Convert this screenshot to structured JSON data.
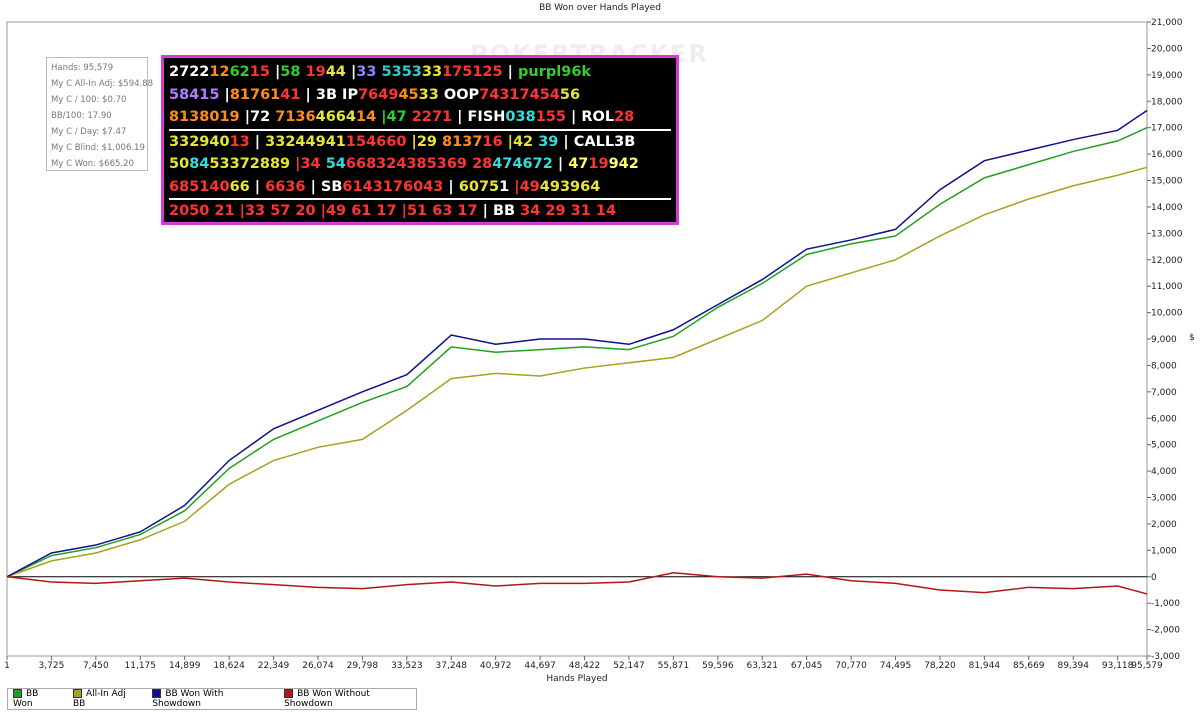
{
  "chart_data": {
    "type": "line",
    "title": "BB Won over Hands Played",
    "x_label": "Hands Played",
    "y_label": "$",
    "watermark": "POKERTRACKER",
    "x": [
      1,
      3725,
      7450,
      11175,
      14899,
      18624,
      22349,
      26074,
      29798,
      33523,
      37248,
      40972,
      44697,
      48422,
      52147,
      55871,
      59596,
      63321,
      67045,
      70770,
      74495,
      78220,
      81944,
      85669,
      89394,
      93118,
      95579
    ],
    "series": [
      {
        "name": "BB Won",
        "color": "#22a022",
        "values": [
          0,
          800,
          1100,
          1600,
          2500,
          4100,
          5200,
          5900,
          6600,
          7200,
          8700,
          8500,
          8600,
          8700,
          8600,
          9100,
          10200,
          11100,
          12200,
          12600,
          12900,
          14100,
          15100,
          15600,
          16100,
          16500,
          17000
        ]
      },
      {
        "name": "All-In Adj BB",
        "color": "#a8a020",
        "values": [
          0,
          600,
          900,
          1400,
          2100,
          3500,
          4400,
          4900,
          5200,
          6300,
          7500,
          7700,
          7600,
          7900,
          8100,
          8300,
          9000,
          9700,
          11000,
          11500,
          12000,
          12900,
          13700,
          14300,
          14800,
          15200,
          15500
        ]
      },
      {
        "name": "BB Won With Showdown",
        "color": "#101090",
        "values": [
          0,
          900,
          1200,
          1700,
          2700,
          4400,
          5600,
          6300,
          7000,
          7650,
          9150,
          8800,
          9000,
          9000,
          8800,
          9350,
          10300,
          11250,
          12400,
          12750,
          13150,
          14650,
          15750,
          16150,
          16550,
          16900,
          17650
        ]
      },
      {
        "name": "BB Won Without Showdown",
        "color": "#b01818",
        "values": [
          0,
          -200,
          -250,
          -150,
          -50,
          -200,
          -300,
          -400,
          -450,
          -300,
          -200,
          -350,
          -250,
          -250,
          -200,
          150,
          0,
          -50,
          100,
          -150,
          -250,
          -500,
          -600,
          -400,
          -450,
          -350,
          -650
        ]
      }
    ],
    "xlim": [
      1,
      95579
    ],
    "xticks": [
      1,
      {
        "value": 3725,
        "label": "3,725"
      },
      {
        "value": 7450,
        "label": "7,450"
      },
      {
        "value": 11175,
        "label": "11,175"
      },
      {
        "value": 14899,
        "label": "14,899"
      },
      {
        "value": 18624,
        "label": "18,624"
      },
      {
        "value": 22349,
        "label": "22,349"
      },
      {
        "value": 26074,
        "label": "26,074"
      },
      {
        "value": 29798,
        "label": "29,798"
      },
      {
        "value": 33523,
        "label": "33,523"
      },
      {
        "value": 37248,
        "label": "37,248"
      },
      {
        "value": 40972,
        "label": "40,972"
      },
      {
        "value": 44697,
        "label": "44,697"
      },
      {
        "value": 48422,
        "label": "48,422"
      },
      {
        "value": 52147,
        "label": "52,147"
      },
      {
        "value": 55871,
        "label": "55,871"
      },
      {
        "value": 59596,
        "label": "59,596"
      },
      {
        "value": 63321,
        "label": "63,321"
      },
      {
        "value": 67045,
        "label": "67,045"
      },
      {
        "value": 70770,
        "label": "70,770"
      },
      {
        "value": 74495,
        "label": "74,495"
      },
      {
        "value": 78220,
        "label": "78,220"
      },
      {
        "value": 81944,
        "label": "81,944"
      },
      {
        "value": 85669,
        "label": "85,669"
      },
      {
        "value": 89394,
        "label": "89,394"
      },
      {
        "value": 93118,
        "label": "93,118"
      },
      {
        "value": 95579,
        "label": "95,579"
      }
    ],
    "ylim": [
      -3000,
      21000
    ],
    "yticks": [
      {
        "value": -3000,
        "label": "-3,000"
      },
      {
        "value": -2000,
        "label": "-2,000"
      },
      {
        "value": -1000,
        "label": "-1,000"
      },
      0,
      {
        "value": 1000,
        "label": "1,000"
      },
      {
        "value": 2000,
        "label": "2,000"
      },
      {
        "value": 3000,
        "label": "3,000"
      },
      {
        "value": 4000,
        "label": "4,000"
      },
      {
        "value": 5000,
        "label": "5,000"
      },
      {
        "value": 6000,
        "label": "6,000"
      },
      {
        "value": 7000,
        "label": "7,000"
      },
      {
        "value": 8000,
        "label": "8,000"
      },
      {
        "value": 9000,
        "label": "9,000"
      },
      {
        "value": 10000,
        "label": "10,000"
      },
      {
        "value": 11000,
        "label": "11,000"
      },
      {
        "value": 12000,
        "label": "12,000"
      },
      {
        "value": 13000,
        "label": "13,000"
      },
      {
        "value": 14000,
        "label": "14,000"
      },
      {
        "value": 15000,
        "label": "15,000"
      },
      {
        "value": 16000,
        "label": "16,000"
      },
      {
        "value": 17000,
        "label": "17,000"
      },
      {
        "value": 18000,
        "label": "18,000"
      },
      {
        "value": 19000,
        "label": "19,000"
      },
      {
        "value": 20000,
        "label": "20,000"
      },
      {
        "value": 21000,
        "label": "21,000"
      }
    ],
    "legend": "bottom-left"
  },
  "stats_box": [
    "Hands: 95,579",
    "My C All-In Adj: $594.88",
    "My C / 100: $0.70",
    "BB/100: 17.90",
    "My C / Day: $7.47",
    "My C Blind: $1,006.19",
    "My C Won: $665.20"
  ],
  "hud": [
    [
      {
        "text": "27",
        "color": "#ffffff"
      },
      {
        "text": "22",
        "color": "#ffffff"
      },
      {
        "text": "12",
        "color": "#ff8c1a"
      },
      {
        "text": "62",
        "color": "#33cc33"
      },
      {
        "text": "15",
        "color": "#ff3333"
      },
      {
        "text": " |",
        "color": "#ffffff"
      },
      {
        "text": "58",
        "color": "#33cc33"
      },
      {
        "text": " 19",
        "color": "#ff3333"
      },
      {
        "text": "44",
        "color": "#e6e633"
      },
      {
        "text": " |",
        "color": "#ffffff"
      },
      {
        "text": "33",
        "color": "#8888ff"
      },
      {
        "text": " 53",
        "color": "#33cccc"
      },
      {
        "text": "53",
        "color": "#33cccc"
      },
      {
        "text": "33",
        "color": "#e6e633"
      },
      {
        "text": "17",
        "color": "#ff3333"
      },
      {
        "text": "51",
        "color": "#ff3333"
      },
      {
        "text": "25",
        "color": "#ff3333"
      },
      {
        "text": " | ",
        "color": "#ffffff"
      },
      {
        "text": "purpl96k",
        "color": "#33cc33"
      }
    ],
    [
      {
        "text": "58415",
        "color": "#b07cff"
      },
      {
        "text": " |",
        "color": "#ffffff"
      },
      {
        "text": "8",
        "color": "#ff8c1a"
      },
      {
        "text": "17",
        "color": "#ff8c1a"
      },
      {
        "text": "61",
        "color": "#ff8c1a"
      },
      {
        "text": "41",
        "color": "#ff3333"
      },
      {
        "text": " | 3B IP",
        "color": "#ffffff"
      },
      {
        "text": "76",
        "color": "#ff3333"
      },
      {
        "text": "49",
        "color": "#ff3333"
      },
      {
        "text": "45",
        "color": "#ff8c1a"
      },
      {
        "text": "33",
        "color": "#e6e633"
      },
      {
        "text": " OOP",
        "color": "#ffffff"
      },
      {
        "text": "74",
        "color": "#ff3333"
      },
      {
        "text": "31",
        "color": "#ff3333"
      },
      {
        "text": "74",
        "color": "#ff3333"
      },
      {
        "text": "54",
        "color": "#ff3333"
      },
      {
        "text": "56",
        "color": "#e6e633"
      }
    ],
    [
      {
        "text": "8",
        "color": "#ff8c1a"
      },
      {
        "text": "13",
        "color": "#ff8c1a"
      },
      {
        "text": "80",
        "color": "#ff8c1a"
      },
      {
        "text": "19",
        "color": "#ff8c1a"
      },
      {
        "text": " |72",
        "color": "#ffffff"
      },
      {
        "text": " 71",
        "color": "#ff8c1a"
      },
      {
        "text": "36",
        "color": "#ff8c1a"
      },
      {
        "text": "46",
        "color": "#e6e633"
      },
      {
        "text": "64",
        "color": "#e6e633"
      },
      {
        "text": "14",
        "color": "#ff8c1a"
      },
      {
        "text": " |47",
        "color": "#33cc33"
      },
      {
        "text": " 22",
        "color": "#ff3333"
      },
      {
        "text": "71",
        "color": "#ff3333"
      },
      {
        "text": " | FISH",
        "color": "#ffffff"
      },
      {
        "text": "0",
        "color": "#33dddd"
      },
      {
        "text": "38",
        "color": "#33dddd"
      },
      {
        "text": "155",
        "color": "#ff3333"
      },
      {
        "text": " | ROL",
        "color": "#ffffff"
      },
      {
        "text": "28",
        "color": "#ff3333"
      }
    ],
    [
      {
        "text": "33",
        "color": "#e6e633"
      },
      {
        "text": "29",
        "color": "#e6e633"
      },
      {
        "text": "40",
        "color": "#e6e633"
      },
      {
        "text": "13",
        "color": "#ff3333"
      },
      {
        "text": " | ",
        "color": "#ffffff"
      },
      {
        "text": "33",
        "color": "#e6e633"
      },
      {
        "text": "24",
        "color": "#e6e633"
      },
      {
        "text": "49",
        "color": "#e6e633"
      },
      {
        "text": "41",
        "color": "#e6e633"
      },
      {
        "text": "15",
        "color": "#ff3333"
      },
      {
        "text": "46",
        "color": "#ff3333"
      },
      {
        "text": "60",
        "color": "#ff3333"
      },
      {
        "text": " |29",
        "color": "#e6e633"
      },
      {
        "text": " 81",
        "color": "#ff8c1a"
      },
      {
        "text": "37",
        "color": "#ff8c1a"
      },
      {
        "text": "16",
        "color": "#ff3333"
      },
      {
        "text": " |42",
        "color": "#e6e633"
      },
      {
        "text": " 39",
        "color": "#33dddd"
      },
      {
        "text": " | CALL3B",
        "color": "#ffffff"
      }
    ],
    [
      {
        "text": "50",
        "color": "#e6e633"
      },
      {
        "text": "84",
        "color": "#33dddd"
      },
      {
        "text": "53",
        "color": "#e6e633"
      },
      {
        "text": "37",
        "color": "#e6e633"
      },
      {
        "text": "28",
        "color": "#e6e633"
      },
      {
        "text": "89",
        "color": "#e6e633"
      },
      {
        "text": " |34",
        "color": "#ff3333"
      },
      {
        "text": " 54",
        "color": "#33dddd"
      },
      {
        "text": "66",
        "color": "#ff3333"
      },
      {
        "text": "83",
        "color": "#ff3333"
      },
      {
        "text": "24",
        "color": "#ff3333"
      },
      {
        "text": "38",
        "color": "#ff3333"
      },
      {
        "text": "53",
        "color": "#ff3333"
      },
      {
        "text": "69",
        "color": "#ff3333"
      },
      {
        "text": " 28",
        "color": "#ff3333"
      },
      {
        "text": "47",
        "color": "#33dddd"
      },
      {
        "text": "46",
        "color": "#33dddd"
      },
      {
        "text": "72",
        "color": "#33dddd"
      },
      {
        "text": " | ",
        "color": "#ffffff"
      },
      {
        "text": "47",
        "color": "#ffff66"
      },
      {
        "text": "19",
        "color": "#ff3333"
      },
      {
        "text": "94",
        "color": "#ffff66"
      },
      {
        "text": "2",
        "color": "#ffff66"
      }
    ],
    [
      {
        "text": "68",
        "color": "#ff3333"
      },
      {
        "text": "51",
        "color": "#ff3333"
      },
      {
        "text": "40",
        "color": "#ff3333"
      },
      {
        "text": "66",
        "color": "#e6e633"
      },
      {
        "text": " | ",
        "color": "#ffffff"
      },
      {
        "text": "66",
        "color": "#ff3333"
      },
      {
        "text": "36",
        "color": "#ff3333"
      },
      {
        "text": " | SB",
        "color": "#ffffff"
      },
      {
        "text": "61",
        "color": "#ff3333"
      },
      {
        "text": "43",
        "color": "#ff3333"
      },
      {
        "text": "17",
        "color": "#ff3333"
      },
      {
        "text": "60",
        "color": "#ff3333"
      },
      {
        "text": "43",
        "color": "#ff3333"
      },
      {
        "text": " | ",
        "color": "#ffffff"
      },
      {
        "text": "60",
        "color": "#e6e633"
      },
      {
        "text": "75",
        "color": "#e6e633"
      },
      {
        "text": "1",
        "color": "#ffffff"
      },
      {
        "text": " |49",
        "color": "#ff3333"
      },
      {
        "text": "49",
        "color": "#e6e633"
      },
      {
        "text": "39",
        "color": "#e6e633"
      },
      {
        "text": "64",
        "color": "#e6e633"
      }
    ],
    [
      {
        "text": "20",
        "color": "#ff3333"
      },
      {
        "text": "50",
        "color": "#ff3333"
      },
      {
        "text": " 21",
        "color": "#ff3333"
      },
      {
        "text": " |33",
        "color": "#ff3333"
      },
      {
        "text": " 57",
        "color": "#ff3333"
      },
      {
        "text": " 20",
        "color": "#ff3333"
      },
      {
        "text": " |49",
        "color": "#ff3333"
      },
      {
        "text": " 61",
        "color": "#ff3333"
      },
      {
        "text": " 17",
        "color": "#ff3333"
      },
      {
        "text": " |51",
        "color": "#ff3333"
      },
      {
        "text": " 63",
        "color": "#ff3333"
      },
      {
        "text": " 17",
        "color": "#ff3333"
      },
      {
        "text": " | BB",
        "color": "#ffffff"
      },
      {
        "text": " 34",
        "color": "#ff3333"
      },
      {
        "text": " 29",
        "color": "#ff3333"
      },
      {
        "text": " 31",
        "color": "#ff3333"
      },
      {
        "text": " 14",
        "color": "#ff3333"
      }
    ]
  ]
}
